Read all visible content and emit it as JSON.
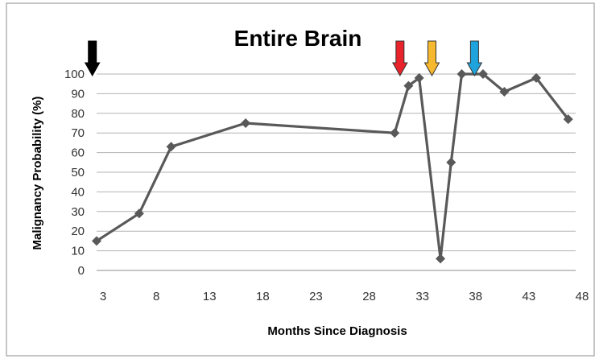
{
  "chart_data": {
    "type": "line",
    "title": "Entire Brain",
    "xlabel": "Months Since Diagnosis",
    "ylabel": "Malignancy Probability (%)",
    "xlim": [
      3,
      48
    ],
    "ylim": [
      0,
      100
    ],
    "x_ticks": [
      3,
      8,
      13,
      18,
      23,
      28,
      33,
      38,
      43,
      48
    ],
    "y_ticks": [
      0,
      10,
      20,
      30,
      40,
      50,
      60,
      70,
      80,
      90,
      100
    ],
    "grid": true,
    "legend": "none",
    "series": [
      {
        "color": "#595959",
        "marker": "diamond",
        "x": [
          3,
          7,
          10,
          17,
          31,
          32.3,
          33.3,
          35.3,
          36.3,
          37.3,
          39.3,
          41.3,
          44.3,
          47.3
        ],
        "y": [
          15,
          29,
          63,
          75,
          70,
          94,
          98,
          6,
          55,
          100,
          100,
          91,
          98,
          77
        ]
      }
    ],
    "annotations": [
      {
        "type": "arrow",
        "x": 2.6,
        "color": "#000000"
      },
      {
        "type": "arrow",
        "x": 31.5,
        "color": "#e8232a"
      },
      {
        "type": "arrow",
        "x": 34.5,
        "color": "#f5b82e"
      },
      {
        "type": "arrow",
        "x": 38.5,
        "color": "#1fa3dc"
      }
    ]
  }
}
